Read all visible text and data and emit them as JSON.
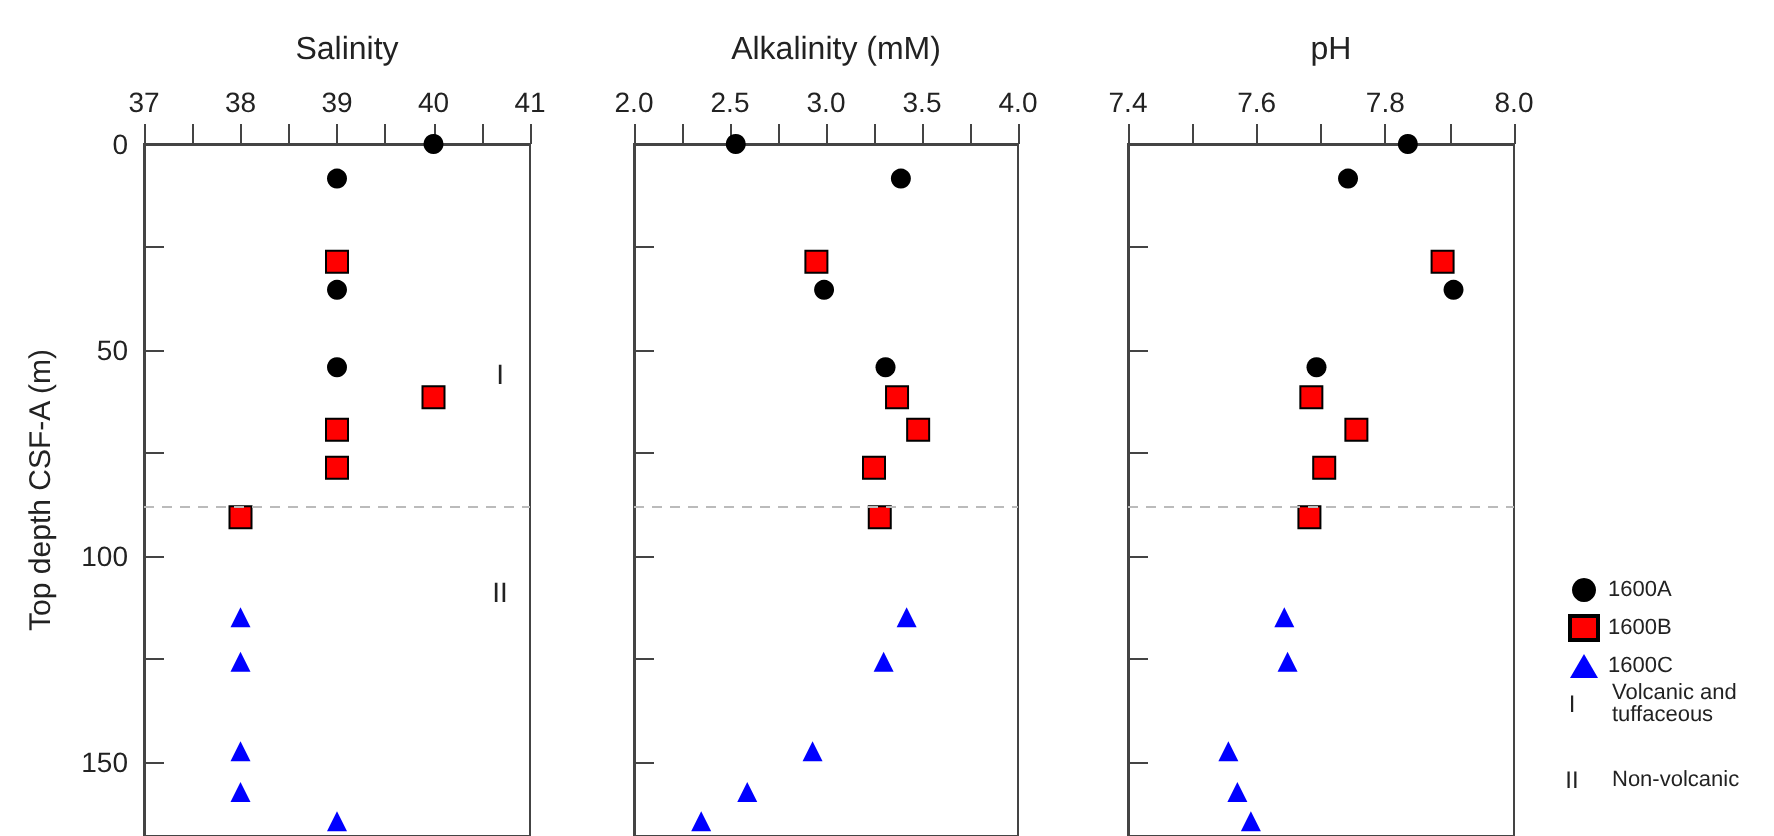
{
  "chart_data": [
    {
      "type": "scatter",
      "title": "Salinity",
      "ylabel": "Top depth CSF-A (m)",
      "xlim": [
        37,
        41
      ],
      "xticks": [
        37,
        {
          "value": 37.5,
          "label": null
        },
        38,
        {
          "value": 38.5,
          "label": null
        },
        39,
        {
          "value": 39.5,
          "label": null
        },
        40,
        {
          "value": 40.5,
          "label": null
        },
        41
      ],
      "ylim": [
        168,
        0
      ],
      "yticks": [
        0,
        {
          "value": 25,
          "label": null
        },
        50,
        {
          "value": 75,
          "label": null
        },
        100,
        {
          "value": 125,
          "label": null
        },
        150
      ],
      "series": [
        {
          "color": "#000000",
          "marker": "circle",
          "x": [
            40,
            39,
            39,
            39
          ],
          "values": [
            0,
            8.4,
            35.4,
            54.2
          ]
        },
        {
          "color": "#ff0000",
          "marker": "square",
          "x": [
            39,
            40,
            39,
            39,
            38
          ],
          "values": [
            28.6,
            61.5,
            69.4,
            78.6,
            90.6
          ]
        },
        {
          "color": "#0000ff",
          "marker": "triangle",
          "x": [
            38,
            38,
            38,
            38,
            39
          ],
          "values": [
            114.9,
            125.7,
            147.4,
            157.3,
            164.4
          ]
        }
      ],
      "ref_lines": [
        {
          "axis": "y",
          "value": 88,
          "color": "#bbbbbb",
          "line_style": "dashed"
        }
      ],
      "annotations": [
        "I",
        "II"
      ],
      "grid": false,
      "legend": false
    },
    {
      "type": "scatter",
      "title": "Alkalinity (mM)",
      "xlim": [
        2.0,
        4.0
      ],
      "xticks": [
        {
          "value": 2.0,
          "label": "2.0"
        },
        {
          "value": 2.25,
          "label": null
        },
        {
          "value": 2.5,
          "label": "2.5"
        },
        {
          "value": 2.75,
          "label": null
        },
        {
          "value": 3.0,
          "label": "3.0"
        },
        {
          "value": 3.25,
          "label": null
        },
        {
          "value": 3.5,
          "label": "3.5"
        },
        {
          "value": 3.75,
          "label": null
        },
        {
          "value": 4.0,
          "label": "4.0"
        }
      ],
      "ylim": [
        168,
        0
      ],
      "yticks": [
        0,
        25,
        50,
        75,
        100,
        125,
        150
      ],
      "tick_labels": "x",
      "series": [
        {
          "color": "#000000",
          "marker": "circle",
          "x": [
            2.53,
            3.39,
            2.99,
            3.31
          ],
          "values": [
            0,
            8.4,
            35.4,
            54.2
          ]
        },
        {
          "color": "#ff0000",
          "marker": "square",
          "x": [
            2.95,
            3.37,
            3.48,
            3.25,
            3.28
          ],
          "values": [
            28.6,
            61.5,
            69.4,
            78.6,
            90.6
          ]
        },
        {
          "color": "#0000ff",
          "marker": "triangle",
          "x": [
            3.42,
            3.3,
            2.93,
            2.59,
            2.35
          ],
          "values": [
            114.9,
            125.7,
            147.4,
            157.3,
            164.4
          ]
        }
      ],
      "ref_lines": [
        {
          "axis": "y",
          "value": 88,
          "color": "#bbbbbb",
          "line_style": "dashed"
        }
      ],
      "grid": false,
      "legend": false
    },
    {
      "type": "scatter",
      "title": "pH",
      "xlim": [
        7.4,
        8.0
      ],
      "xticks": [
        {
          "value": 7.4,
          "label": "7.4"
        },
        {
          "value": 7.5,
          "label": null
        },
        {
          "value": 7.6,
          "label": "7.6"
        },
        {
          "value": 7.7,
          "label": null
        },
        {
          "value": 7.8,
          "label": "7.8"
        },
        {
          "value": 7.9,
          "label": null
        },
        {
          "value": 8.0,
          "label": "8.0"
        }
      ],
      "ylim": [
        168,
        0
      ],
      "yticks": [
        0,
        25,
        50,
        75,
        100,
        125,
        150
      ],
      "tick_labels": "x",
      "series": [
        {
          "name": "1600A",
          "color": "#000000",
          "marker": "circle",
          "x": [
            7.835,
            7.742,
            7.906,
            7.693
          ],
          "values": [
            0,
            8.4,
            35.4,
            54.2
          ]
        },
        {
          "name": "1600B",
          "color": "#ff0000",
          "marker": "square",
          "x": [
            7.889,
            7.685,
            7.755,
            7.705,
            7.682
          ],
          "values": [
            28.6,
            61.5,
            69.4,
            78.6,
            90.6
          ]
        },
        {
          "name": "1600C",
          "color": "#0000ff",
          "marker": "triangle",
          "x": [
            7.643,
            7.648,
            7.556,
            7.57,
            7.591
          ],
          "values": [
            114.9,
            125.7,
            147.4,
            157.3,
            164.4
          ]
        }
      ],
      "ref_lines": [
        {
          "axis": "y",
          "value": 88,
          "color": "#bbbbbb",
          "line_style": "dashed"
        }
      ],
      "annotations": [
        "I",
        "Volcanic and tuffaceous",
        "II",
        "Non-volcanic"
      ],
      "grid": false,
      "legend": "right"
    }
  ]
}
